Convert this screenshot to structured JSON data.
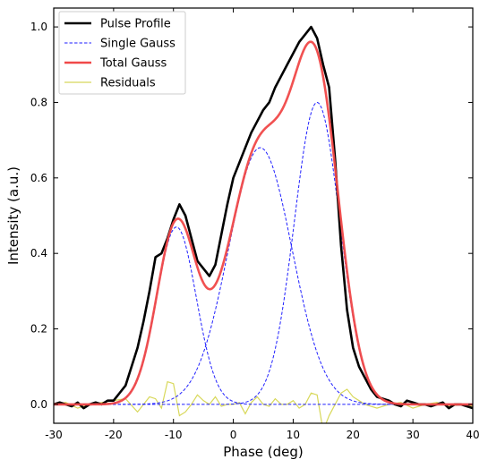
{
  "chart_data": {
    "type": "line",
    "xlabel": "Phase (deg)",
    "ylabel": "Intensity (a.u.)",
    "xlim": [
      -30,
      40
    ],
    "ylim": [
      -0.05,
      1.05
    ],
    "xticks": [
      -30,
      -20,
      -10,
      0,
      10,
      20,
      30,
      40
    ],
    "xtick_labels": [
      "-30",
      "-20",
      "-10",
      "0",
      "10",
      "20",
      "30",
      "40"
    ],
    "yticks": [
      0.0,
      0.2,
      0.4,
      0.6,
      0.8,
      1.0
    ],
    "ytick_labels": [
      "0.0",
      "0.2",
      "0.4",
      "0.6",
      "0.8",
      "1.0"
    ],
    "legend_position": "top-left",
    "legend": [
      "Pulse Profile",
      "Single Gauss",
      "Total Gauss",
      "Residuals"
    ],
    "series": [
      {
        "name": "Pulse Profile",
        "color": "#000000",
        "style": "solid",
        "x": [
          -30,
          -29,
          -28,
          -27,
          -26,
          -25,
          -24,
          -23,
          -22,
          -21,
          -20,
          -19,
          -18,
          -17,
          -16,
          -15,
          -14,
          -13,
          -12,
          -11,
          -10,
          -9,
          -8,
          -7,
          -6,
          -5,
          -4,
          -3,
          -2,
          -1,
          0,
          1,
          2,
          3,
          4,
          5,
          6,
          7,
          8,
          9,
          10,
          11,
          12,
          13,
          14,
          15,
          16,
          17,
          18,
          19,
          20,
          21,
          22,
          23,
          24,
          25,
          26,
          27,
          28,
          29,
          30,
          31,
          32,
          33,
          34,
          35,
          36,
          37,
          38,
          39,
          40
        ],
        "y": [
          0.0,
          0.005,
          0.0,
          -0.005,
          0.005,
          -0.01,
          0.0,
          0.005,
          0.0,
          0.01,
          0.01,
          0.03,
          0.05,
          0.1,
          0.15,
          0.22,
          0.3,
          0.39,
          0.4,
          0.44,
          0.49,
          0.53,
          0.5,
          0.44,
          0.38,
          0.36,
          0.34,
          0.37,
          0.45,
          0.53,
          0.6,
          0.64,
          0.68,
          0.72,
          0.75,
          0.78,
          0.8,
          0.84,
          0.87,
          0.9,
          0.93,
          0.96,
          0.98,
          1.0,
          0.97,
          0.9,
          0.84,
          0.65,
          0.42,
          0.25,
          0.15,
          0.1,
          0.07,
          0.04,
          0.02,
          0.015,
          0.01,
          0.0,
          -0.005,
          0.01,
          0.005,
          0.0,
          0.0,
          -0.005,
          0.0,
          0.005,
          -0.01,
          0.0,
          0.0,
          -0.005,
          -0.01
        ]
      },
      {
        "name": "Single Gauss",
        "color": "#1f1fff",
        "style": "dashed",
        "components": [
          {
            "amplitude": 0.47,
            "center": -9.5,
            "sigma": 3.3
          },
          {
            "amplitude": 0.68,
            "center": 4.5,
            "sigma": 5.3
          },
          {
            "amplitude": 0.8,
            "center": 14.0,
            "sigma": 3.8
          }
        ]
      },
      {
        "name": "Total Gauss",
        "color": "#f04848",
        "style": "solid",
        "description_from": "sum of Single Gauss components"
      },
      {
        "name": "Residuals",
        "color": "#d8d85a",
        "style": "solid",
        "x": [
          -30,
          -28,
          -26,
          -24,
          -22,
          -20,
          -18,
          -16,
          -14,
          -13,
          -12,
          -11,
          -10,
          -9,
          -8,
          -7,
          -6,
          -5,
          -4,
          -3,
          -2,
          -1,
          0,
          1,
          2,
          3,
          4,
          5,
          6,
          7,
          8,
          9,
          10,
          11,
          12,
          13,
          14,
          15,
          16,
          17,
          18,
          19,
          20,
          21,
          22,
          24,
          26,
          28,
          30,
          32,
          34,
          36,
          38,
          40
        ],
        "y": [
          0.0,
          0.005,
          -0.01,
          0.0,
          0.005,
          0.01,
          0.015,
          -0.02,
          0.02,
          0.015,
          -0.01,
          0.06,
          0.055,
          -0.03,
          -0.02,
          0.0,
          0.025,
          0.01,
          0.0,
          0.02,
          -0.005,
          0.0,
          0.0,
          0.005,
          -0.025,
          0.005,
          0.02,
          0.0,
          -0.005,
          0.015,
          0.0,
          0.0,
          0.01,
          -0.01,
          0.0,
          0.03,
          0.025,
          -0.07,
          -0.03,
          0.0,
          0.03,
          0.04,
          0.02,
          0.01,
          0.0,
          -0.01,
          0.0,
          0.005,
          -0.01,
          0.0,
          0.005,
          -0.005,
          0.0,
          -0.005
        ]
      }
    ]
  }
}
